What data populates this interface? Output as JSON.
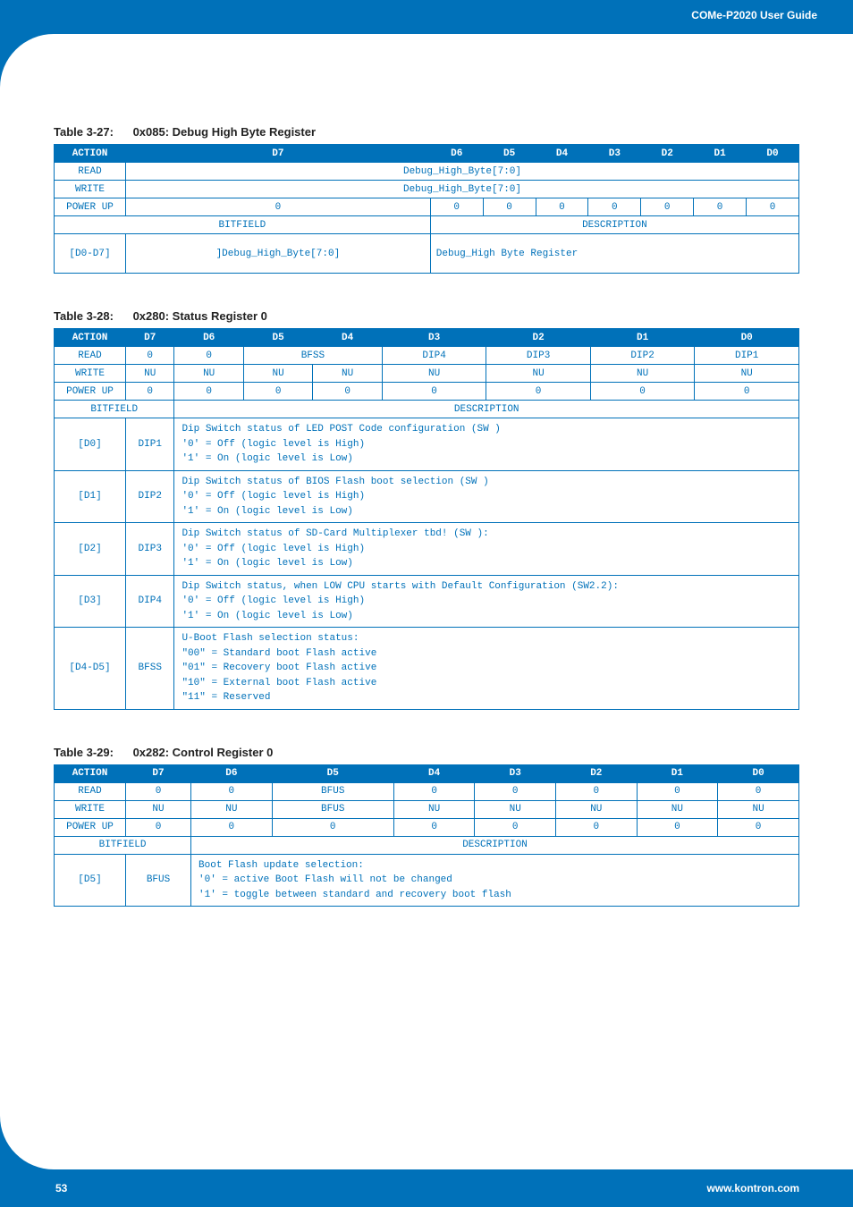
{
  "header": {
    "title": "COMe-P2020 User Guide"
  },
  "footer": {
    "page": "53",
    "url": "www.kontron.com"
  },
  "colors": {
    "brand": "#0071b9",
    "text": "#0071b9",
    "border": "#0071b9"
  },
  "table327": {
    "caption_num": "Table 3-27:",
    "caption_name": "0x085: Debug High Byte Register",
    "headers": [
      "ACTION",
      "D7",
      "D6",
      "D5",
      "D4",
      "D3",
      "D2",
      "D1",
      "D0"
    ],
    "read_label": "READ",
    "read_span": "Debug_High_Byte[7:0]",
    "write_label": "WRITE",
    "write_span": "Debug_High_Byte[7:0]",
    "powerup_label": "POWER UP",
    "powerup": [
      "0",
      "0",
      "0",
      "0",
      "0",
      "0",
      "0",
      "0"
    ],
    "bf_label": "BITFIELD",
    "desc_label": "DESCRIPTION",
    "bf_row": {
      "bits": "[D0-D7]",
      "name": "]Debug_High_Byte[7:0]",
      "desc": "Debug_High Byte Register"
    }
  },
  "table328": {
    "caption_num": "Table 3-28:",
    "caption_name": "0x280: Status Register 0",
    "headers": [
      "ACTION",
      "D7",
      "D6",
      "D5",
      "D4",
      "D3",
      "D2",
      "D1",
      "D0"
    ],
    "read_label": "READ",
    "read": {
      "d7": "0",
      "d6": "0",
      "bfss": "BFSS",
      "d3": "DIP4",
      "d2": "DIP3",
      "d1": "DIP2",
      "d0": "DIP1"
    },
    "write_label": "WRITE",
    "write": [
      "NU",
      "NU",
      "NU",
      "NU",
      "NU",
      "NU",
      "NU",
      "NU"
    ],
    "powerup_label": "POWER UP",
    "powerup": [
      "0",
      "0",
      "0",
      "0",
      "0",
      "0",
      "0",
      "0"
    ],
    "bf_label": "BITFIELD",
    "desc_label": "DESCRIPTION",
    "rows": [
      {
        "bits": "[D0]",
        "name": "DIP1",
        "desc": "Dip Switch status of LED POST Code configuration (SW )\n'0' = Off (logic level is High)\n'1' = On (logic level is Low)"
      },
      {
        "bits": "[D1]",
        "name": "DIP2",
        "desc": "Dip Switch status of BIOS Flash boot selection (SW )\n'0' = Off (logic level is High)\n'1' = On (logic level is Low)"
      },
      {
        "bits": "[D2]",
        "name": "DIP3",
        "desc": "Dip Switch status of SD-Card Multiplexer tbd! (SW ):\n'0' = Off (logic level is High)\n'1' = On (logic level is Low)"
      },
      {
        "bits": "[D3]",
        "name": "DIP4",
        "desc": "Dip Switch status, when LOW CPU starts with Default Configuration (SW2.2):\n'0' = Off (logic level is High)\n'1' = On (logic level is Low)"
      },
      {
        "bits": "[D4-D5]",
        "name": "BFSS",
        "desc": "U-Boot Flash selection status:\n\"00\" = Standard boot Flash active\n\"01\" = Recovery boot Flash active\n\"10\" = External boot Flash active\n\"11\" = Reserved"
      }
    ]
  },
  "table329": {
    "caption_num": "Table 3-29:",
    "caption_name": "0x282: Control Register 0",
    "headers": [
      "ACTION",
      "D7",
      "D6",
      "D5",
      "D4",
      "D3",
      "D2",
      "D1",
      "D0"
    ],
    "read_label": "READ",
    "read": [
      "0",
      "0",
      "BFUS",
      "0",
      "0",
      "0",
      "0",
      "0"
    ],
    "write_label": "WRITE",
    "write": [
      "NU",
      "NU",
      "BFUS",
      "NU",
      "NU",
      "NU",
      "NU",
      "NU"
    ],
    "powerup_label": "POWER UP",
    "powerup": [
      "0",
      "0",
      "0",
      "0",
      "0",
      "0",
      "0",
      "0"
    ],
    "bf_label": "BITFIELD",
    "desc_label": "DESCRIPTION",
    "row": {
      "bits": "[D5]",
      "name": "BFUS",
      "desc": "Boot Flash update selection:\n'0' = active Boot Flash will not be changed\n'1' = toggle between standard and recovery boot flash"
    }
  }
}
